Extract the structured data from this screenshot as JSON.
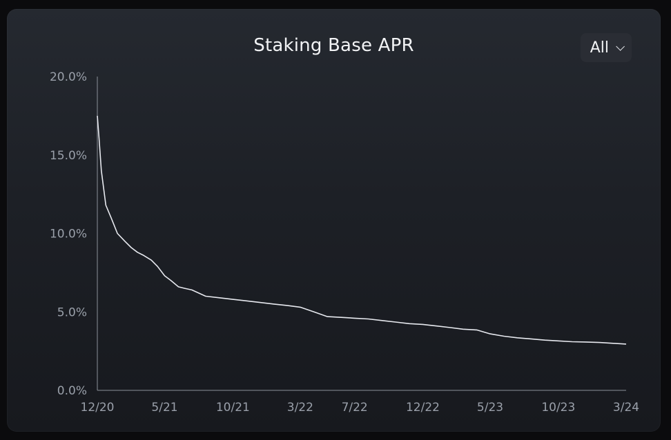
{
  "header": {
    "title": "Staking Base APR",
    "range_label": "All",
    "chevron_icon": "chevron-down-icon"
  },
  "colors": {
    "line": "#e8eaf0",
    "axis": "#8c919a",
    "card_top": "#252930",
    "card_bottom": "#17191e"
  },
  "chart_data": {
    "type": "line",
    "title": "Staking Base APR",
    "xlabel": "",
    "ylabel": "",
    "ylim": [
      0,
      20
    ],
    "yticks": [
      "0.0%",
      "5.0%",
      "10.0%",
      "15.0%",
      "20.0%"
    ],
    "ytick_values": [
      0,
      5,
      10,
      15,
      20
    ],
    "xticks": [
      "12/20",
      "5/21",
      "10/21",
      "3/22",
      "7/22",
      "12/22",
      "5/23",
      "10/23",
      "3/24"
    ],
    "xtick_values": [
      "2020-12-01",
      "2021-05-01",
      "2021-10-01",
      "2022-03-01",
      "2022-07-01",
      "2022-12-01",
      "2023-05-01",
      "2023-10-01",
      "2024-03-01"
    ],
    "xlim": [
      "2020-12-01",
      "2024-03-01"
    ],
    "grid": false,
    "series": [
      {
        "x": [
          "2020-12-01",
          "2020-12-05",
          "2020-12-10",
          "2020-12-20",
          "2021-01-01",
          "2021-01-15",
          "2021-02-01",
          "2021-02-15",
          "2021-03-01",
          "2021-03-15",
          "2021-04-01",
          "2021-04-15",
          "2021-05-01",
          "2021-05-15",
          "2021-06-01",
          "2021-06-15",
          "2021-07-01",
          "2021-08-01",
          "2021-09-01",
          "2021-10-01",
          "2021-11-01",
          "2021-12-01",
          "2022-01-01",
          "2022-02-01",
          "2022-03-01",
          "2022-04-01",
          "2022-05-01",
          "2022-06-01",
          "2022-07-01",
          "2022-08-01",
          "2022-09-01",
          "2022-10-01",
          "2022-11-01",
          "2022-12-01",
          "2023-01-01",
          "2023-02-01",
          "2023-03-01",
          "2023-04-01",
          "2023-05-01",
          "2023-06-01",
          "2023-07-01",
          "2023-08-01",
          "2023-09-01",
          "2023-10-01",
          "2023-11-01",
          "2023-12-01",
          "2024-01-01",
          "2024-02-01",
          "2024-03-01"
        ],
        "y": [
          17.5,
          16.0,
          14.0,
          11.8,
          11.0,
          10.0,
          9.5,
          9.1,
          8.8,
          8.6,
          8.3,
          7.9,
          7.3,
          7.0,
          6.6,
          6.5,
          6.4,
          6.0,
          5.9,
          5.8,
          5.7,
          5.6,
          5.5,
          5.4,
          5.3,
          5.0,
          4.7,
          4.65,
          4.6,
          4.55,
          4.45,
          4.35,
          4.25,
          4.2,
          4.1,
          4.0,
          3.9,
          3.85,
          3.6,
          3.45,
          3.35,
          3.28,
          3.2,
          3.15,
          3.1,
          3.08,
          3.05,
          3.0,
          2.95
        ]
      }
    ]
  }
}
